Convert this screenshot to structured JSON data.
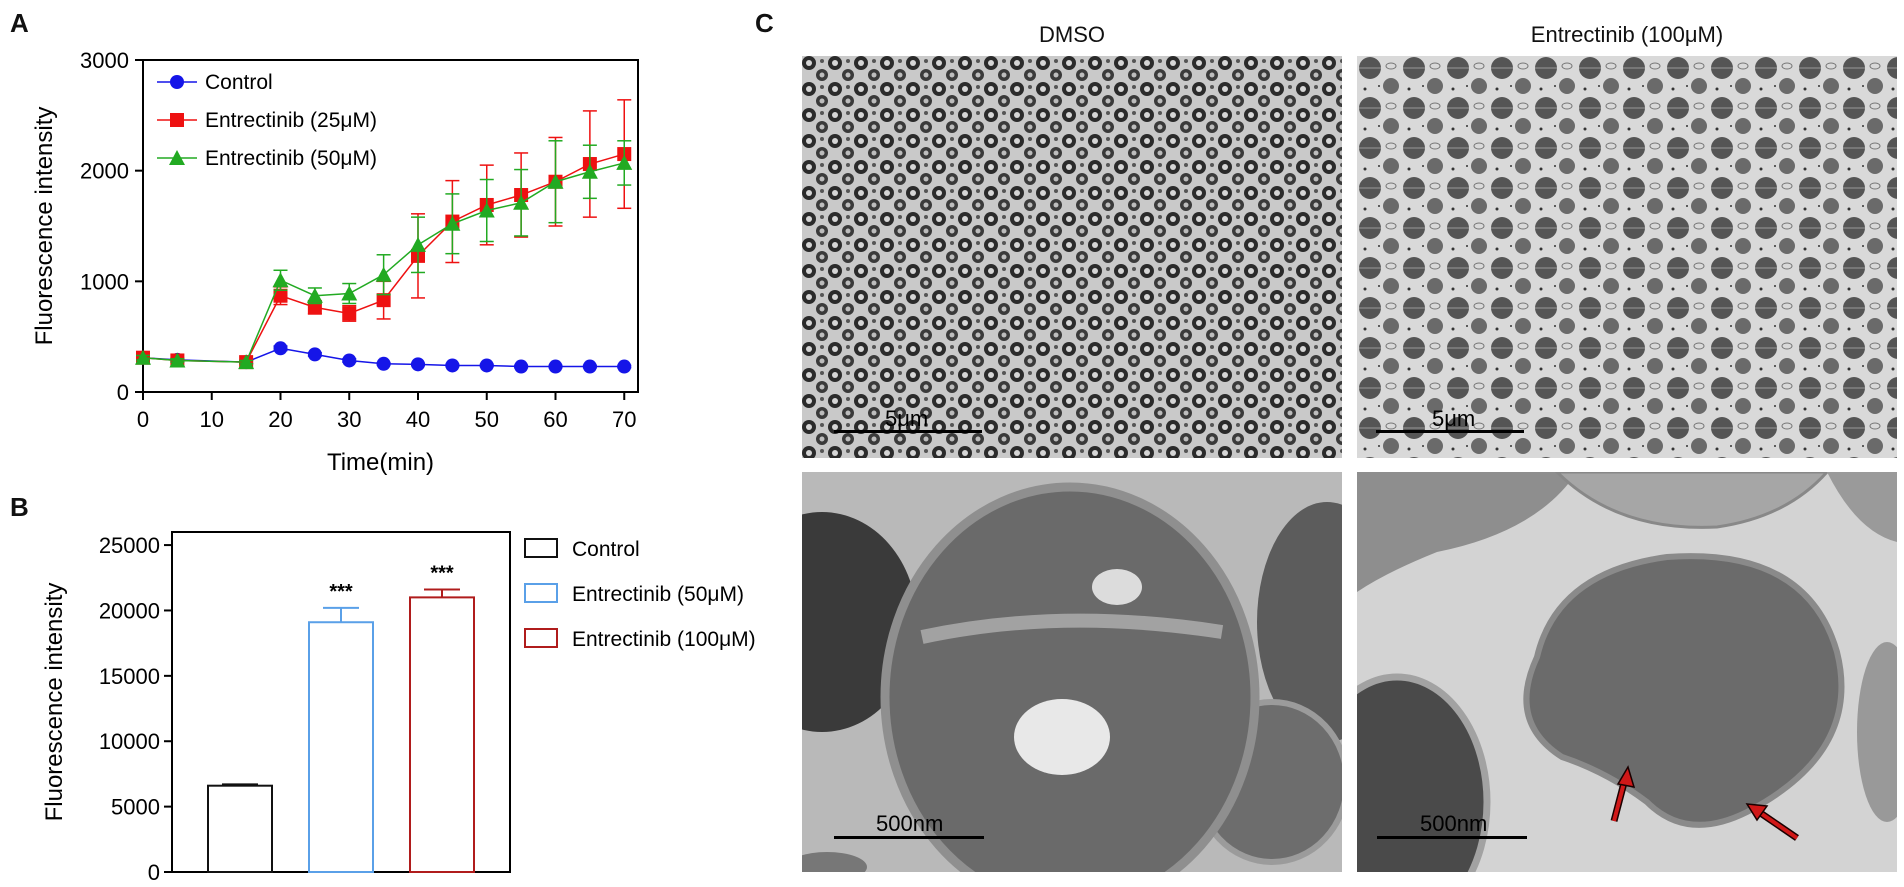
{
  "panels": {
    "a": "A",
    "b": "B",
    "c": "C"
  },
  "chart_data": [
    {
      "type": "line",
      "panel": "A",
      "xlabel": "Time(min)",
      "ylabel": "Fluorescence intensity",
      "xlim": [
        0,
        72
      ],
      "ylim": [
        0,
        3000
      ],
      "xticks": [
        0,
        10,
        20,
        30,
        40,
        50,
        60,
        70
      ],
      "yticks": [
        0,
        1000,
        2000,
        3000
      ],
      "legend_position": "top-left",
      "series": [
        {
          "name": "Control",
          "color": "#1515e8",
          "marker": "circle",
          "x": [
            0,
            5,
            15,
            20,
            25,
            30,
            35,
            40,
            45,
            50,
            55,
            60,
            65,
            70
          ],
          "y": [
            310,
            290,
            270,
            395,
            340,
            285,
            255,
            250,
            240,
            240,
            230,
            230,
            230,
            230
          ],
          "err": [
            20,
            15,
            15,
            20,
            15,
            15,
            10,
            10,
            10,
            10,
            10,
            10,
            10,
            10
          ]
        },
        {
          "name": "Entrectinib (25μM)",
          "color": "#ee1111",
          "marker": "square",
          "x": [
            0,
            5,
            15,
            20,
            25,
            30,
            35,
            40,
            45,
            50,
            55,
            60,
            65,
            70
          ],
          "y": [
            310,
            285,
            270,
            870,
            765,
            710,
            830,
            1230,
            1540,
            1690,
            1780,
            1900,
            2060,
            2150
          ],
          "err": [
            20,
            15,
            15,
            80,
            60,
            70,
            170,
            380,
            370,
            360,
            380,
            400,
            480,
            490
          ]
        },
        {
          "name": "Entrectinib (50μM)",
          "color": "#22aa22",
          "marker": "triangle",
          "x": [
            0,
            5,
            15,
            20,
            25,
            30,
            35,
            40,
            45,
            50,
            55,
            60,
            65,
            70
          ],
          "y": [
            310,
            285,
            270,
            1010,
            870,
            890,
            1060,
            1330,
            1520,
            1640,
            1710,
            1900,
            1990,
            2070
          ],
          "err": [
            20,
            15,
            15,
            90,
            70,
            90,
            180,
            250,
            270,
            280,
            300,
            370,
            240,
            200
          ]
        }
      ]
    },
    {
      "type": "bar",
      "panel": "B",
      "ylabel": "Fluorescence intensity",
      "ylim": [
        0,
        26000
      ],
      "yticks": [
        0,
        5000,
        10000,
        15000,
        20000,
        25000
      ],
      "legend_position": "right",
      "series": [
        {
          "name": "Control",
          "color": "#111111",
          "value": 6600,
          "err": 100,
          "sig": ""
        },
        {
          "name": "Entrectinib (50μM)",
          "color": "#5aa0e8",
          "value": 19100,
          "err": 1100,
          "sig": "***"
        },
        {
          "name": "Entrectinib (100μM)",
          "color": "#b01c1c",
          "value": 21000,
          "err": 600,
          "sig": "***"
        }
      ]
    }
  ],
  "micrographs": {
    "left_title": "DMSO",
    "right_title": "Entrectinib (100μM)",
    "top_scale": "5μm",
    "bottom_scale": "500nm"
  }
}
